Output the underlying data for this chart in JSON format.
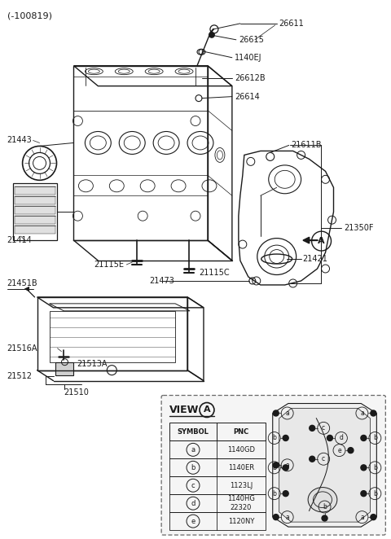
{
  "title": "(-100819)",
  "bg": "#ffffff",
  "lc": "#1a1a1a",
  "figsize": [
    4.8,
    6.62
  ],
  "dpi": 100,
  "view_a_table": {
    "symbols": [
      "a",
      "b",
      "c",
      "d",
      "e"
    ],
    "pncs": [
      "1140GD",
      "1140ER",
      "1123LJ",
      "1140HG\n22320",
      "1120NY"
    ]
  }
}
